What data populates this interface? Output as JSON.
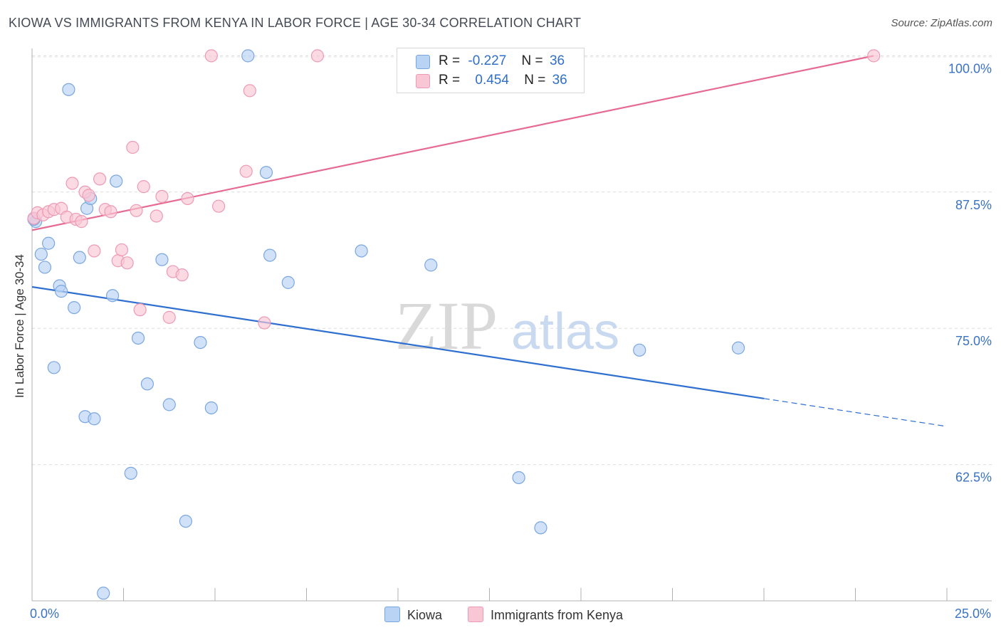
{
  "title": "KIOWA VS IMMIGRANTS FROM KENYA IN LABOR FORCE | AGE 30-34 CORRELATION CHART",
  "source": "Source: ZipAtlas.com",
  "watermark": {
    "zip": "ZIP",
    "atlas": "atlas"
  },
  "colors": {
    "kiowa_fill": "#b9d3f4",
    "kiowa_stroke": "#7aa6e0",
    "kiowa_line": "#2f6fd0",
    "kenya_fill": "#f9c6d6",
    "kenya_stroke": "#ee9ab4",
    "kenya_line": "#e66a93",
    "tick_label": "#3a72c4",
    "grid": "#dcdcdc"
  },
  "legend": {
    "rows": [
      {
        "r_label": "R =",
        "r_value": "-0.227",
        "n_label": "N =",
        "n_value": "36"
      },
      {
        "r_label": "R =",
        "r_value": "0.454",
        "n_label": "N =",
        "n_value": "36"
      }
    ]
  },
  "bottom_legend": {
    "kiowa": "Kiowa",
    "kenya": "Immigrants from Kenya"
  },
  "chart_data": {
    "type": "scatter",
    "title": "KIOWA VS IMMIGRANTS FROM KENYA IN LABOR FORCE | AGE 30-34 CORRELATION CHART",
    "xlabel": "",
    "ylabel": "In Labor Force | Age 30-34",
    "xlim": [
      0,
      25
    ],
    "ylim": [
      50,
      101.2
    ],
    "x_tick_labels": [
      "0.0%",
      "25.0%"
    ],
    "y_ticks": [
      62.5,
      75.0,
      87.5,
      100.0
    ],
    "y_tick_labels": [
      "62.5%",
      "75.0%",
      "87.5%",
      "100.0%"
    ],
    "series": [
      {
        "name": "Kiowa",
        "points": [
          [
            0.1,
            84.8
          ],
          [
            0.25,
            81.8
          ],
          [
            0.35,
            80.6
          ],
          [
            0.45,
            82.8
          ],
          [
            0.6,
            71.4
          ],
          [
            0.75,
            78.9
          ],
          [
            0.8,
            78.4
          ],
          [
            1.0,
            96.9
          ],
          [
            1.15,
            76.9
          ],
          [
            1.3,
            81.5
          ],
          [
            1.45,
            66.9
          ],
          [
            1.5,
            86.0
          ],
          [
            1.6,
            86.9
          ],
          [
            1.7,
            66.7
          ],
          [
            1.95,
            50.7
          ],
          [
            2.2,
            78.0
          ],
          [
            2.3,
            88.5
          ],
          [
            2.7,
            61.7
          ],
          [
            2.9,
            74.1
          ],
          [
            3.15,
            69.9
          ],
          [
            3.55,
            81.3
          ],
          [
            3.75,
            68.0
          ],
          [
            4.2,
            57.3
          ],
          [
            4.6,
            73.7
          ],
          [
            4.9,
            67.7
          ],
          [
            5.9,
            100.0
          ],
          [
            6.4,
            89.3
          ],
          [
            6.5,
            81.7
          ],
          [
            7.0,
            79.2
          ],
          [
            9.0,
            82.1
          ],
          [
            10.9,
            80.8
          ],
          [
            13.3,
            61.3
          ],
          [
            13.9,
            56.7
          ],
          [
            16.6,
            73.0
          ],
          [
            19.3,
            73.2
          ],
          [
            0.05,
            85.0
          ]
        ]
      },
      {
        "name": "Immigrants from Kenya",
        "points": [
          [
            0.05,
            85.1
          ],
          [
            0.15,
            85.6
          ],
          [
            0.3,
            85.4
          ],
          [
            0.45,
            85.7
          ],
          [
            0.6,
            85.9
          ],
          [
            0.8,
            86.0
          ],
          [
            0.95,
            85.2
          ],
          [
            1.1,
            88.3
          ],
          [
            1.2,
            85.0
          ],
          [
            1.35,
            84.8
          ],
          [
            1.45,
            87.5
          ],
          [
            1.55,
            87.2
          ],
          [
            1.7,
            82.1
          ],
          [
            1.85,
            88.7
          ],
          [
            2.0,
            85.9
          ],
          [
            2.15,
            85.7
          ],
          [
            2.35,
            81.2
          ],
          [
            2.45,
            82.2
          ],
          [
            2.6,
            81.0
          ],
          [
            2.75,
            91.6
          ],
          [
            2.85,
            85.8
          ],
          [
            2.95,
            76.7
          ],
          [
            3.05,
            88.0
          ],
          [
            3.4,
            85.3
          ],
          [
            3.55,
            87.1
          ],
          [
            3.75,
            76.0
          ],
          [
            3.85,
            80.2
          ],
          [
            4.1,
            79.9
          ],
          [
            4.25,
            86.9
          ],
          [
            4.9,
            100.0
          ],
          [
            5.1,
            86.2
          ],
          [
            5.85,
            89.4
          ],
          [
            5.95,
            96.8
          ],
          [
            6.35,
            75.5
          ],
          [
            7.8,
            100.0
          ],
          [
            23.0,
            100.0
          ]
        ]
      }
    ],
    "trend_lines": [
      {
        "series": "Kiowa",
        "y_at_x0": 78.8,
        "y_at_x25": 66.0,
        "solid_to_x": 20.0
      },
      {
        "series": "Immigrants from Kenya",
        "y_at_x0": 84.0,
        "y_at_x23": 100.0
      }
    ]
  }
}
